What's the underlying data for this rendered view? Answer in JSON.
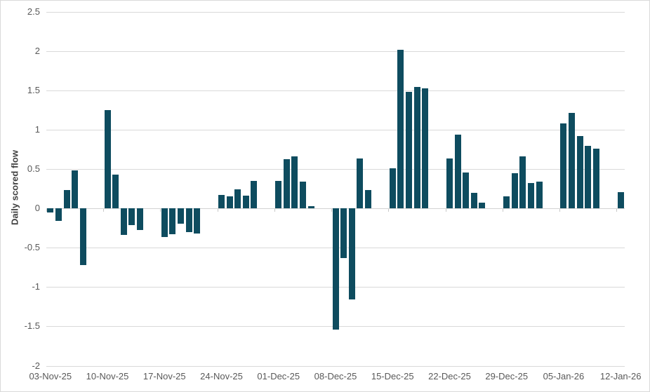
{
  "chart_data": {
    "type": "bar",
    "title": "",
    "xlabel": "",
    "ylabel": "Daily scored flow",
    "ylim": [
      -2,
      2.5
    ],
    "yticks": [
      2.5,
      2,
      1.5,
      1,
      0.5,
      0,
      -0.5,
      -1,
      -1.5,
      -2
    ],
    "ytick_labels": [
      "2.5",
      "2",
      "1.5",
      "1",
      "0.5",
      "0",
      "-0.5",
      "-1",
      "-1.5",
      "-2"
    ],
    "xtick_labels": [
      "03-Nov-25",
      "10-Nov-25",
      "17-Nov-25",
      "24-Nov-25",
      "01-Dec-25",
      "08-Dec-25",
      "15-Dec-25",
      "22-Dec-25",
      "29-Dec-25",
      "05-Jan-26",
      "12-Jan-26"
    ],
    "grid": true,
    "legend": false,
    "bar_color": "#0e4c5f",
    "gridline_color": "#d9d9d9",
    "tick_label_color": "#595959",
    "points": [
      {
        "date": "03-Nov-25",
        "value": -0.05
      },
      {
        "date": "04-Nov-25",
        "value": -0.16
      },
      {
        "date": "05-Nov-25",
        "value": 0.23
      },
      {
        "date": "06-Nov-25",
        "value": 0.48
      },
      {
        "date": "07-Nov-25",
        "value": -0.72
      },
      {
        "date": "10-Nov-25",
        "value": 1.25
      },
      {
        "date": "11-Nov-25",
        "value": 0.43
      },
      {
        "date": "12-Nov-25",
        "value": -0.34
      },
      {
        "date": "13-Nov-25",
        "value": -0.21
      },
      {
        "date": "14-Nov-25",
        "value": -0.27
      },
      {
        "date": "17-Nov-25",
        "value": -0.36
      },
      {
        "date": "18-Nov-25",
        "value": -0.33
      },
      {
        "date": "19-Nov-25",
        "value": -0.19
      },
      {
        "date": "20-Nov-25",
        "value": -0.3
      },
      {
        "date": "21-Nov-25",
        "value": -0.32
      },
      {
        "date": "24-Nov-25",
        "value": 0.17
      },
      {
        "date": "25-Nov-25",
        "value": 0.15
      },
      {
        "date": "26-Nov-25",
        "value": 0.24
      },
      {
        "date": "27-Nov-25",
        "value": 0.16
      },
      {
        "date": "28-Nov-25",
        "value": 0.35
      },
      {
        "date": "01-Dec-25",
        "value": 0.35
      },
      {
        "date": "02-Dec-25",
        "value": 0.63
      },
      {
        "date": "03-Dec-25",
        "value": 0.66
      },
      {
        "date": "04-Dec-25",
        "value": 0.34
      },
      {
        "date": "05-Dec-25",
        "value": 0.03
      },
      {
        "date": "08-Dec-25",
        "value": -1.54
      },
      {
        "date": "09-Dec-25",
        "value": -0.63
      },
      {
        "date": "10-Dec-25",
        "value": -1.16
      },
      {
        "date": "11-Dec-25",
        "value": 0.64
      },
      {
        "date": "12-Dec-25",
        "value": 0.23
      },
      {
        "date": "15-Dec-25",
        "value": 0.51
      },
      {
        "date": "16-Dec-25",
        "value": 2.02
      },
      {
        "date": "17-Dec-25",
        "value": 1.48
      },
      {
        "date": "18-Dec-25",
        "value": 1.55
      },
      {
        "date": "19-Dec-25",
        "value": 1.53
      },
      {
        "date": "22-Dec-25",
        "value": 0.64
      },
      {
        "date": "23-Dec-25",
        "value": 0.94
      },
      {
        "date": "24-Dec-25",
        "value": 0.46
      },
      {
        "date": "25-Dec-25",
        "value": 0.2
      },
      {
        "date": "26-Dec-25",
        "value": 0.07
      },
      {
        "date": "29-Dec-25",
        "value": 0.15
      },
      {
        "date": "30-Dec-25",
        "value": 0.45
      },
      {
        "date": "31-Dec-25",
        "value": 0.66
      },
      {
        "date": "01-Jan-26",
        "value": 0.32
      },
      {
        "date": "02-Jan-26",
        "value": 0.34
      },
      {
        "date": "05-Jan-26",
        "value": 1.08
      },
      {
        "date": "06-Jan-26",
        "value": 1.22
      },
      {
        "date": "07-Jan-26",
        "value": 0.92
      },
      {
        "date": "08-Jan-26",
        "value": 0.8
      },
      {
        "date": "09-Jan-26",
        "value": 0.76
      },
      {
        "date": "12-Jan-26",
        "value": 0.21
      }
    ]
  }
}
